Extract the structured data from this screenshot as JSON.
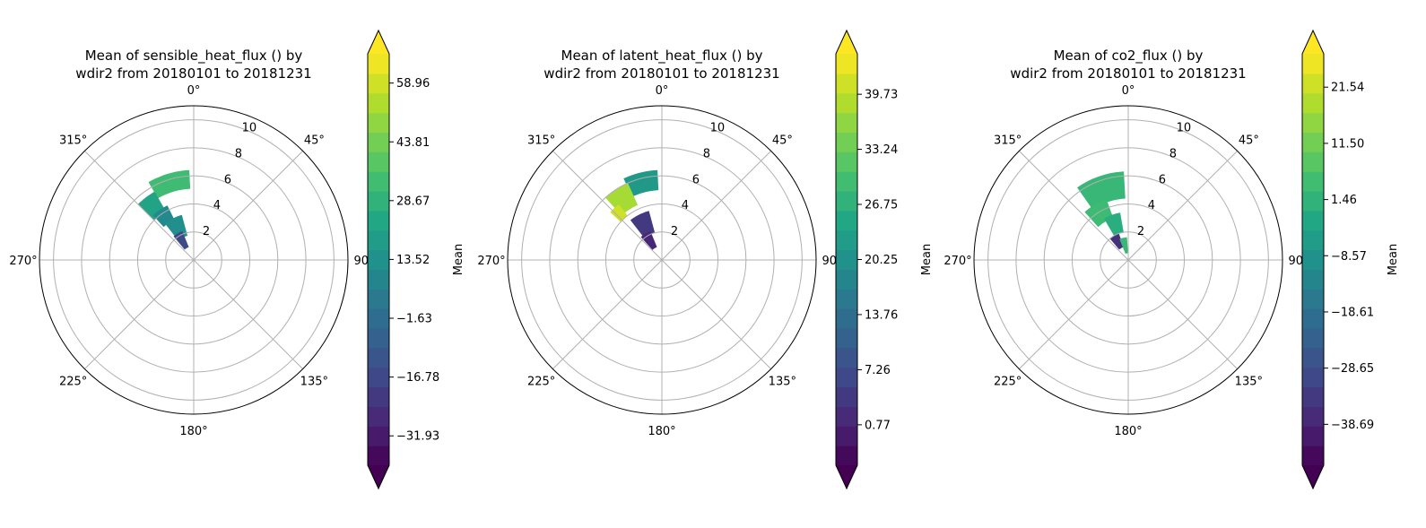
{
  "chart_data": [
    {
      "type": "polar-contour",
      "title_lines": [
        "Mean of sensible_heat_flux () by",
        "wdir2 from 20180101 to 20181231"
      ],
      "angle_labels": [
        "0°",
        "45°",
        "90°",
        "135°",
        "180°",
        "225°",
        "270°",
        "315°"
      ],
      "radial_ticks": [
        2,
        4,
        6,
        8,
        10
      ],
      "rlim": [
        0,
        11
      ],
      "colorbar": {
        "label": "Mean",
        "ticks": [
          "58.96",
          "43.81",
          "28.67",
          "13.52",
          "−1.63",
          "−16.78",
          "−31.93"
        ],
        "tick_values": [
          58.96,
          43.81,
          28.67,
          13.52,
          -1.63,
          -16.78,
          -31.93
        ],
        "range": [
          -39.5,
          66.5
        ],
        "levels": 21,
        "extend": "both",
        "colormap": "viridis"
      },
      "regions": [
        {
          "theta": [
            330,
            357
          ],
          "r": [
            5.1,
            6.4
          ],
          "value": 33
        },
        {
          "theta": [
            315,
            330
          ],
          "r": [
            4.0,
            5.6
          ],
          "value": 22
        },
        {
          "theta": [
            318,
            334
          ],
          "r": [
            3.2,
            4.3
          ],
          "value": 10
        },
        {
          "theta": [
            322,
            345
          ],
          "r": [
            1.8,
            3.3
          ],
          "value": 13
        },
        {
          "theta": [
            320,
            338
          ],
          "r": [
            1.0,
            2.2
          ],
          "value": -16
        }
      ]
    },
    {
      "type": "polar-contour",
      "title_lines": [
        "Mean of latent_heat_flux () by",
        "wdir2 from 20180101 to 20181231"
      ],
      "angle_labels": [
        "0°",
        "45°",
        "90°",
        "135°",
        "180°",
        "225°",
        "270°",
        "315°"
      ],
      "radial_ticks": [
        2,
        4,
        6,
        8,
        10
      ],
      "rlim": [
        0,
        11
      ],
      "colorbar": {
        "label": "Mean",
        "ticks": [
          "39.73",
          "33.24",
          "26.75",
          "20.25",
          "13.76",
          "7.26",
          "0.77"
        ],
        "tick_values": [
          39.73,
          33.24,
          26.75,
          20.25,
          13.76,
          7.26,
          0.77
        ],
        "range": [
          -4.0,
          44.5
        ],
        "levels": 21,
        "extend": "both",
        "colormap": "viridis"
      },
      "regions": [
        {
          "theta": [
            335,
            357
          ],
          "r": [
            5.0,
            6.4
          ],
          "value": 22
        },
        {
          "theta": [
            318,
            336
          ],
          "r": [
            4.3,
            6.0
          ],
          "value": 38
        },
        {
          "theta": [
            313,
            322
          ],
          "r": [
            4.0,
            5.0
          ],
          "value": 41
        },
        {
          "theta": [
            322,
            345
          ],
          "r": [
            2.0,
            3.6
          ],
          "value": 4
        },
        {
          "theta": [
            318,
            338
          ],
          "r": [
            1.0,
            2.2
          ],
          "value": 1.5
        }
      ]
    },
    {
      "type": "polar-contour",
      "title_lines": [
        "Mean of co2_flux () by",
        "wdir2 from 20180101 to 20181231"
      ],
      "angle_labels": [
        "0°",
        "45°",
        "90°",
        "135°",
        "180°",
        "225°",
        "270°",
        "315°"
      ],
      "radial_ticks": [
        2,
        4,
        6,
        8,
        10
      ],
      "rlim": [
        0,
        11
      ],
      "colorbar": {
        "label": "Mean",
        "ticks": [
          "21.54",
          "11.50",
          "1.46",
          "−8.57",
          "−18.61",
          "−28.65",
          "−38.69"
        ],
        "tick_values": [
          21.54,
          11.5,
          1.46,
          -8.57,
          -18.61,
          -28.65,
          -38.69
        ],
        "range": [
          -46.0,
          27.5
        ],
        "levels": 21,
        "extend": "both",
        "colormap": "viridis"
      },
      "regions": [
        {
          "theta": [
            325,
            357
          ],
          "r": [
            4.4,
            6.3
          ],
          "value": 3
        },
        {
          "theta": [
            318,
            340
          ],
          "r": [
            3.2,
            4.6
          ],
          "value": 4
        },
        {
          "theta": [
            330,
            350
          ],
          "r": [
            2.0,
            3.4
          ],
          "value": 0
        },
        {
          "theta": [
            320,
            340
          ],
          "r": [
            1.0,
            2.0
          ],
          "value": -36
        },
        {
          "theta": [
            338,
            356
          ],
          "r": [
            0.5,
            1.6
          ],
          "value": 3
        }
      ]
    }
  ]
}
